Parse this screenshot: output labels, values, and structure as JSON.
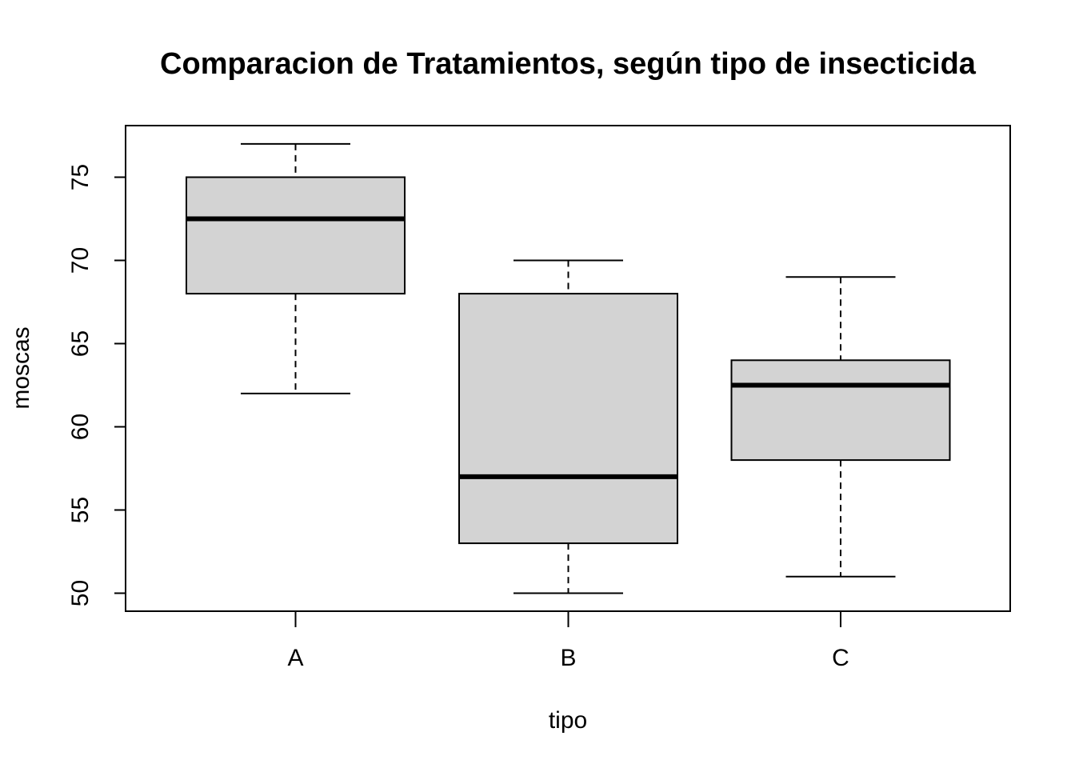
{
  "chart_data": {
    "type": "boxplot",
    "title": "Comparacion de Tratamientos, según tipo de insecticida",
    "xlabel": "tipo",
    "ylabel": "moscas",
    "categories": [
      "A",
      "B",
      "C"
    ],
    "yticks": [
      "50",
      "55",
      "60",
      "65",
      "70",
      "75"
    ],
    "ylim": [
      49,
      78
    ],
    "boxes": [
      {
        "name": "A",
        "min": 62,
        "q1": 68,
        "median": 72.5,
        "q3": 75,
        "max": 77
      },
      {
        "name": "B",
        "min": 50,
        "q1": 53,
        "median": 57,
        "q3": 68,
        "max": 70
      },
      {
        "name": "C",
        "min": 51,
        "q1": 58,
        "median": 62.5,
        "q3": 64,
        "max": 69
      }
    ],
    "grid": false,
    "box_fill": "#d3d3d3",
    "line_color": "#000000"
  }
}
